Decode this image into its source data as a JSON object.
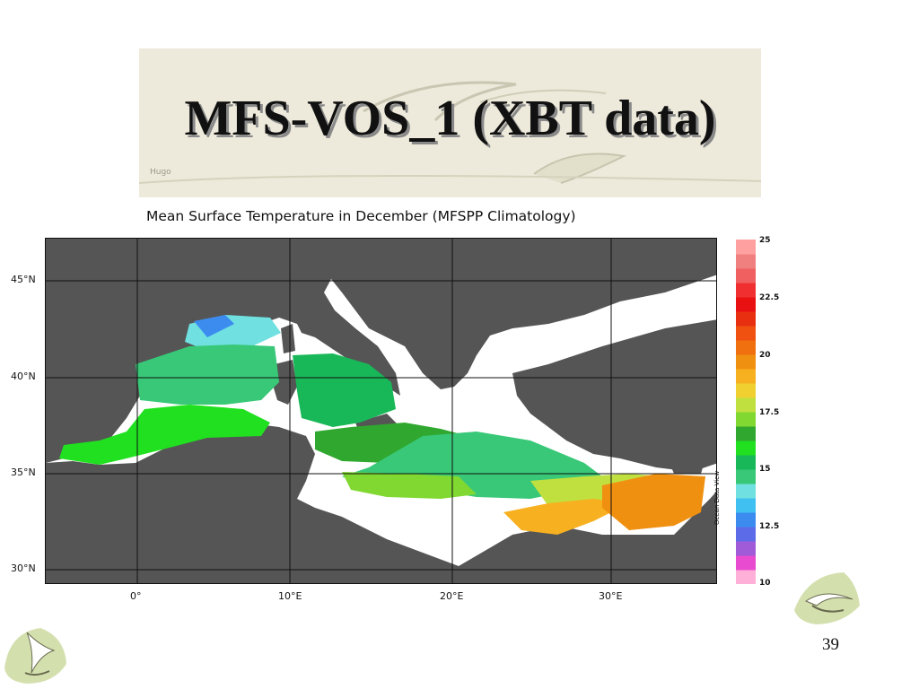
{
  "slide": {
    "title": "MFS-VOS_1 (XBT data)",
    "page_number": "39"
  },
  "map": {
    "title": "Mean Surface Temperature in December (MFSPP Climatology)",
    "lat_labels": [
      "45°N",
      "40°N",
      "35°N",
      "30°N"
    ],
    "lon_labels": [
      "0°",
      "10°E",
      "20°E",
      "30°E"
    ],
    "land_color": "#555555",
    "credit": "Ocean Data View"
  },
  "colorbar": {
    "labels": [
      "25",
      "22.5",
      "20",
      "17.5",
      "15",
      "12.5",
      "10"
    ],
    "min": 10,
    "max": 25,
    "colors": [
      "#ffb0d8",
      "#e84ad0",
      "#a05cd8",
      "#5c6ce8",
      "#3c8cf0",
      "#40c0f0",
      "#70e0e0",
      "#38c878",
      "#18b858",
      "#20e020",
      "#30a830",
      "#80d830",
      "#c0e040",
      "#f0d030",
      "#f7b020",
      "#f09010",
      "#f07010",
      "#f05010",
      "#e83010",
      "#e81010",
      "#f03030",
      "#f06060",
      "#f08080",
      "#ffa0a0"
    ]
  }
}
